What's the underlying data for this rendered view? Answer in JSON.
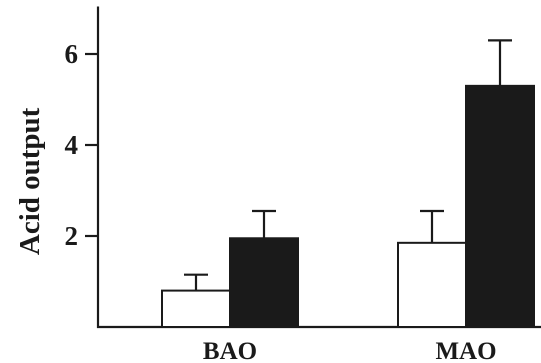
{
  "chart_data": {
    "type": "bar",
    "title": "",
    "xlabel": "",
    "ylabel": "Acid output",
    "categories": [
      "BAO",
      "MAO"
    ],
    "ylim": [
      0,
      7
    ],
    "yticks": [
      2,
      4,
      6
    ],
    "series": [
      {
        "values": [
          0.8,
          1.85
        ],
        "errors": [
          0.35,
          0.7
        ],
        "fill": "#ffffff"
      },
      {
        "values": [
          1.95,
          5.3
        ],
        "errors": [
          0.6,
          1.0
        ],
        "fill": "#1a1a1a"
      }
    ],
    "grid": false,
    "legend": "none"
  }
}
